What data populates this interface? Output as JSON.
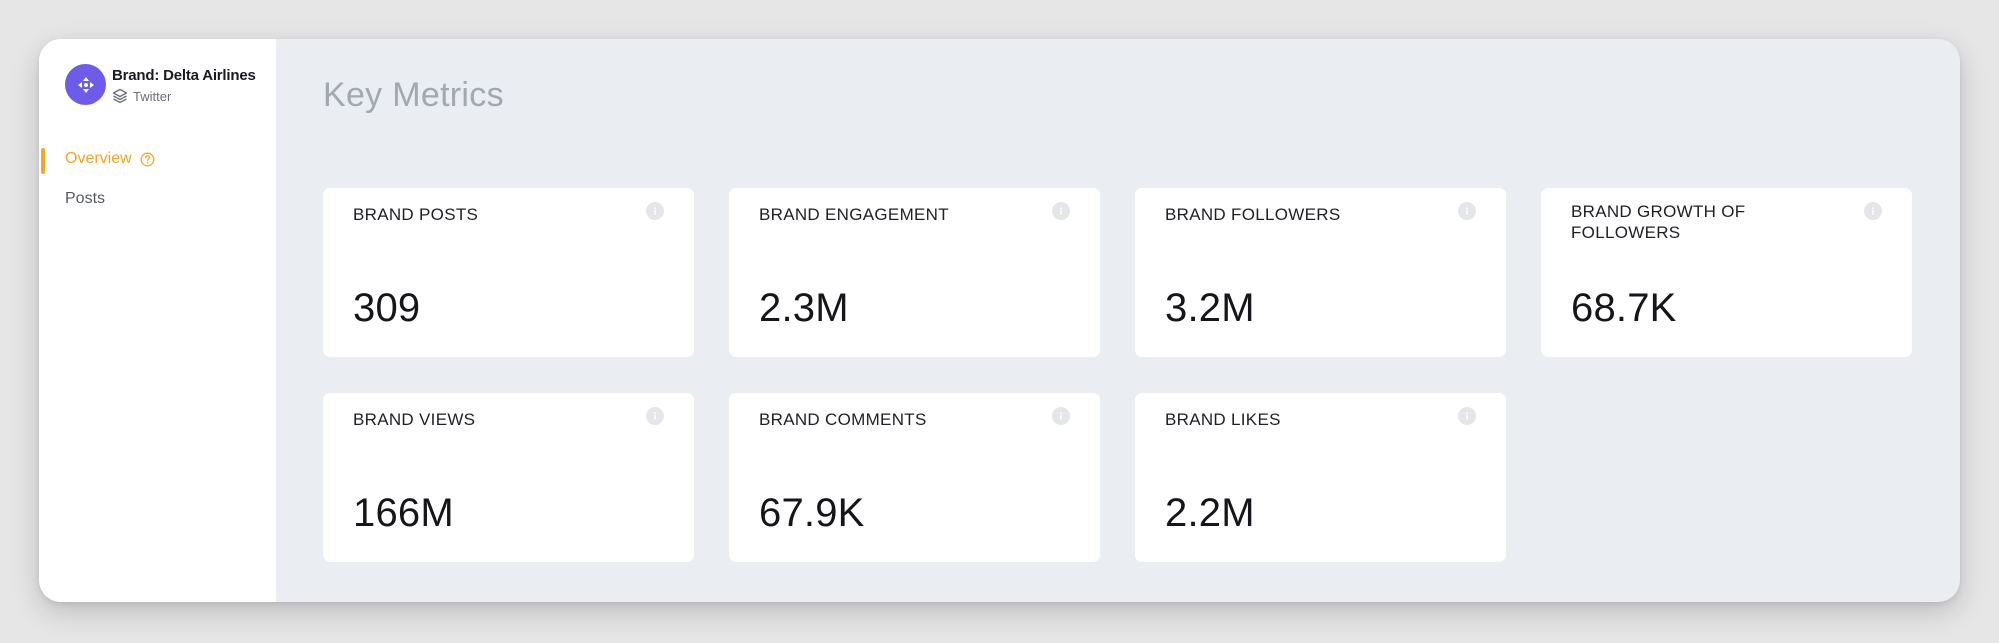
{
  "sidebar": {
    "brand_name": "Brand: Delta Airlines",
    "platform": "Twitter",
    "nav": [
      {
        "label": "Overview",
        "active": true,
        "icon": "help-circle-icon"
      },
      {
        "label": "Posts",
        "active": false
      }
    ]
  },
  "main": {
    "title": "Key Metrics",
    "metrics": [
      {
        "label": "BRAND POSTS",
        "value": "309"
      },
      {
        "label": "BRAND ENGAGEMENT",
        "value": "2.3M"
      },
      {
        "label": "BRAND FOLLOWERS",
        "value": "3.2M"
      },
      {
        "label": "BRAND GROWTH OF FOLLOWERS",
        "value": "68.7K"
      },
      {
        "label": "BRAND VIEWS",
        "value": "166M"
      },
      {
        "label": "BRAND COMMENTS",
        "value": "67.9K"
      },
      {
        "label": "BRAND LIKES",
        "value": "2.2M"
      }
    ]
  },
  "colors": {
    "accent": "#f5a524",
    "avatar": "#6c5ce7",
    "background": "#eaedf2",
    "card": "#ffffff"
  }
}
